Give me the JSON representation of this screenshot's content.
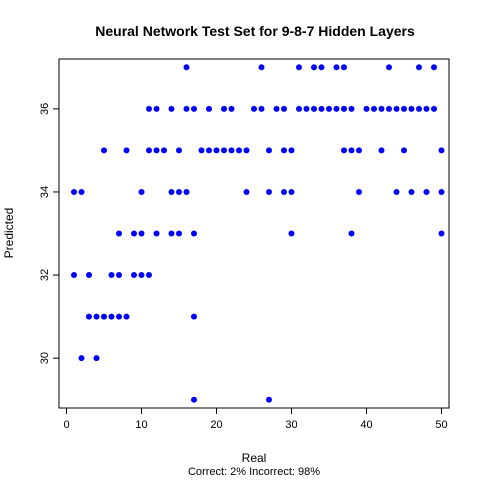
{
  "chart_data": {
    "type": "scatter",
    "title": "Neural Network Test Set for 9-8-7 Hidden Layers",
    "xlabel": "Real",
    "ylabel": "Predicted",
    "footer": "Correct: 2% Incorrect: 98%",
    "xlim": [
      -1,
      51
    ],
    "ylim": [
      28.8,
      37.2
    ],
    "x_ticks": [
      0,
      10,
      20,
      30,
      40,
      50
    ],
    "y_ticks": [
      30,
      32,
      34,
      36
    ],
    "grid": false,
    "point_color": "#0000ff",
    "points": [
      {
        "x": 1,
        "y": 34
      },
      {
        "x": 2,
        "y": 34
      },
      {
        "x": 1,
        "y": 32
      },
      {
        "x": 2,
        "y": 30
      },
      {
        "x": 3,
        "y": 32
      },
      {
        "x": 3,
        "y": 31
      },
      {
        "x": 4,
        "y": 31
      },
      {
        "x": 4,
        "y": 30
      },
      {
        "x": 5,
        "y": 31
      },
      {
        "x": 5,
        "y": 35
      },
      {
        "x": 6,
        "y": 31
      },
      {
        "x": 6,
        "y": 32
      },
      {
        "x": 7,
        "y": 31
      },
      {
        "x": 7,
        "y": 32
      },
      {
        "x": 7,
        "y": 33
      },
      {
        "x": 8,
        "y": 31
      },
      {
        "x": 8,
        "y": 35
      },
      {
        "x": 9,
        "y": 32
      },
      {
        "x": 9,
        "y": 33
      },
      {
        "x": 10,
        "y": 32
      },
      {
        "x": 10,
        "y": 33
      },
      {
        "x": 10,
        "y": 34
      },
      {
        "x": 11,
        "y": 32
      },
      {
        "x": 11,
        "y": 35
      },
      {
        "x": 11,
        "y": 36
      },
      {
        "x": 12,
        "y": 33
      },
      {
        "x": 12,
        "y": 35
      },
      {
        "x": 12,
        "y": 36
      },
      {
        "x": 13,
        "y": 35
      },
      {
        "x": 14,
        "y": 33
      },
      {
        "x": 14,
        "y": 34
      },
      {
        "x": 14,
        "y": 36
      },
      {
        "x": 15,
        "y": 33
      },
      {
        "x": 15,
        "y": 34
      },
      {
        "x": 15,
        "y": 35
      },
      {
        "x": 16,
        "y": 34
      },
      {
        "x": 16,
        "y": 36
      },
      {
        "x": 16,
        "y": 37
      },
      {
        "x": 17,
        "y": 29
      },
      {
        "x": 17,
        "y": 31
      },
      {
        "x": 17,
        "y": 33
      },
      {
        "x": 17,
        "y": 36
      },
      {
        "x": 18,
        "y": 35
      },
      {
        "x": 19,
        "y": 35
      },
      {
        "x": 19,
        "y": 36
      },
      {
        "x": 20,
        "y": 35
      },
      {
        "x": 21,
        "y": 35
      },
      {
        "x": 21,
        "y": 36
      },
      {
        "x": 22,
        "y": 35
      },
      {
        "x": 22,
        "y": 36
      },
      {
        "x": 23,
        "y": 35
      },
      {
        "x": 24,
        "y": 34
      },
      {
        "x": 24,
        "y": 35
      },
      {
        "x": 25,
        "y": 36
      },
      {
        "x": 26,
        "y": 36
      },
      {
        "x": 26,
        "y": 37
      },
      {
        "x": 27,
        "y": 29
      },
      {
        "x": 27,
        "y": 34
      },
      {
        "x": 27,
        "y": 35
      },
      {
        "x": 28,
        "y": 36
      },
      {
        "x": 29,
        "y": 34
      },
      {
        "x": 29,
        "y": 35
      },
      {
        "x": 29,
        "y": 36
      },
      {
        "x": 30,
        "y": 33
      },
      {
        "x": 30,
        "y": 34
      },
      {
        "x": 30,
        "y": 35
      },
      {
        "x": 31,
        "y": 36
      },
      {
        "x": 31,
        "y": 37
      },
      {
        "x": 32,
        "y": 36
      },
      {
        "x": 33,
        "y": 36
      },
      {
        "x": 33,
        "y": 37
      },
      {
        "x": 34,
        "y": 36
      },
      {
        "x": 34,
        "y": 37
      },
      {
        "x": 35,
        "y": 36
      },
      {
        "x": 36,
        "y": 36
      },
      {
        "x": 36,
        "y": 37
      },
      {
        "x": 37,
        "y": 35
      },
      {
        "x": 37,
        "y": 36
      },
      {
        "x": 37,
        "y": 37
      },
      {
        "x": 38,
        "y": 33
      },
      {
        "x": 38,
        "y": 35
      },
      {
        "x": 38,
        "y": 36
      },
      {
        "x": 39,
        "y": 34
      },
      {
        "x": 39,
        "y": 35
      },
      {
        "x": 40,
        "y": 36
      },
      {
        "x": 41,
        "y": 36
      },
      {
        "x": 42,
        "y": 35
      },
      {
        "x": 42,
        "y": 36
      },
      {
        "x": 43,
        "y": 36
      },
      {
        "x": 43,
        "y": 37
      },
      {
        "x": 44,
        "y": 34
      },
      {
        "x": 44,
        "y": 36
      },
      {
        "x": 45,
        "y": 35
      },
      {
        "x": 45,
        "y": 36
      },
      {
        "x": 46,
        "y": 34
      },
      {
        "x": 46,
        "y": 36
      },
      {
        "x": 47,
        "y": 36
      },
      {
        "x": 47,
        "y": 37
      },
      {
        "x": 48,
        "y": 34
      },
      {
        "x": 48,
        "y": 36
      },
      {
        "x": 49,
        "y": 36
      },
      {
        "x": 49,
        "y": 37
      },
      {
        "x": 50,
        "y": 33
      },
      {
        "x": 50,
        "y": 34
      },
      {
        "x": 50,
        "y": 35
      }
    ]
  }
}
